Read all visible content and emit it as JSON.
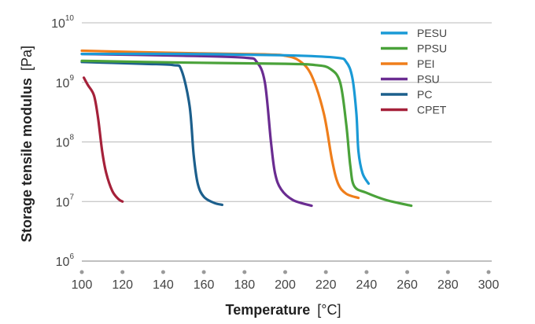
{
  "chart_data": {
    "type": "line",
    "title": "",
    "xlabel_bold": "Temperature",
    "xlabel_unit": "[°C]",
    "ylabel_bold": "Storage tensile modulus",
    "ylabel_unit": "[Pa]",
    "xlim": [
      100,
      300
    ],
    "x_ticks": [
      100,
      120,
      140,
      160,
      180,
      200,
      220,
      240,
      260,
      280,
      300
    ],
    "y_scale": "log",
    "ylim_exponents": [
      6,
      10
    ],
    "y_ticks": [
      {
        "base": "10",
        "exp": "6",
        "value": 1000000
      },
      {
        "base": "10",
        "exp": "7",
        "value": 10000000
      },
      {
        "base": "10",
        "exp": "8",
        "value": 100000000
      },
      {
        "base": "10",
        "exp": "9",
        "value": 1000000000
      },
      {
        "base": "10",
        "exp": "10",
        "value": 10000000000
      }
    ],
    "grid": "horizontal",
    "legend_position": "top-right",
    "series": [
      {
        "name": "PESU",
        "color": "#1a9ad6",
        "points": [
          [
            100,
            3000000000.0
          ],
          [
            150,
            3000000000.0
          ],
          [
            200,
            2850000000.0
          ],
          [
            225,
            2600000000.0
          ],
          [
            230,
            2200000000.0
          ],
          [
            233,
            1200000000.0
          ],
          [
            235,
            300000000.0
          ],
          [
            236,
            70000000.0
          ],
          [
            238,
            30000000.0
          ],
          [
            241,
            20000000.0
          ]
        ]
      },
      {
        "name": "PPSU",
        "color": "#4aa23a",
        "points": [
          [
            100,
            2300000000.0
          ],
          [
            150,
            2150000000.0
          ],
          [
            200,
            2050000000.0
          ],
          [
            215,
            1950000000.0
          ],
          [
            222,
            1700000000.0
          ],
          [
            227,
            1000000000.0
          ],
          [
            230,
            200000000.0
          ],
          [
            232,
            40000000.0
          ],
          [
            234,
            18000000.0
          ],
          [
            240,
            14000000.0
          ],
          [
            250,
            10500000.0
          ],
          [
            262,
            8500000.0
          ]
        ]
      },
      {
        "name": "PEI",
        "color": "#ef7e1b",
        "points": [
          [
            100,
            3400000000.0
          ],
          [
            150,
            3100000000.0
          ],
          [
            190,
            2950000000.0
          ],
          [
            200,
            2800000000.0
          ],
          [
            207,
            2300000000.0
          ],
          [
            213,
            1300000000.0
          ],
          [
            219,
            300000000.0
          ],
          [
            223,
            50000000.0
          ],
          [
            226,
            20000000.0
          ],
          [
            230,
            13500000.0
          ],
          [
            236,
            11500000.0
          ]
        ]
      },
      {
        "name": "PSU",
        "color": "#6a2c91",
        "points": [
          [
            100,
            3000000000.0
          ],
          [
            150,
            2800000000.0
          ],
          [
            180,
            2600000000.0
          ],
          [
            186,
            2200000000.0
          ],
          [
            190,
            1000000000.0
          ],
          [
            193,
            100000000.0
          ],
          [
            195,
            30000000.0
          ],
          [
            198,
            16000000.0
          ],
          [
            204,
            10500000.0
          ],
          [
            213,
            8500000.0
          ]
        ]
      },
      {
        "name": "PC",
        "color": "#1c5f8c",
        "points": [
          [
            100,
            2200000000.0
          ],
          [
            130,
            2050000000.0
          ],
          [
            145,
            1950000000.0
          ],
          [
            149,
            1600000000.0
          ],
          [
            153,
            400000000.0
          ],
          [
            155,
            60000000.0
          ],
          [
            157,
            20000000.0
          ],
          [
            160,
            12000000.0
          ],
          [
            165,
            9500000.0
          ],
          [
            169,
            8800000.0
          ]
        ]
      },
      {
        "name": "CPET",
        "color": "#a5213a",
        "points": [
          [
            101,
            1200000000.0
          ],
          [
            103,
            900000000.0
          ],
          [
            106,
            600000000.0
          ],
          [
            108,
            250000000.0
          ],
          [
            110,
            70000000.0
          ],
          [
            112,
            30000000.0
          ],
          [
            115,
            15000000.0
          ],
          [
            118,
            11000000.0
          ],
          [
            120,
            10000000.0
          ]
        ]
      }
    ]
  }
}
